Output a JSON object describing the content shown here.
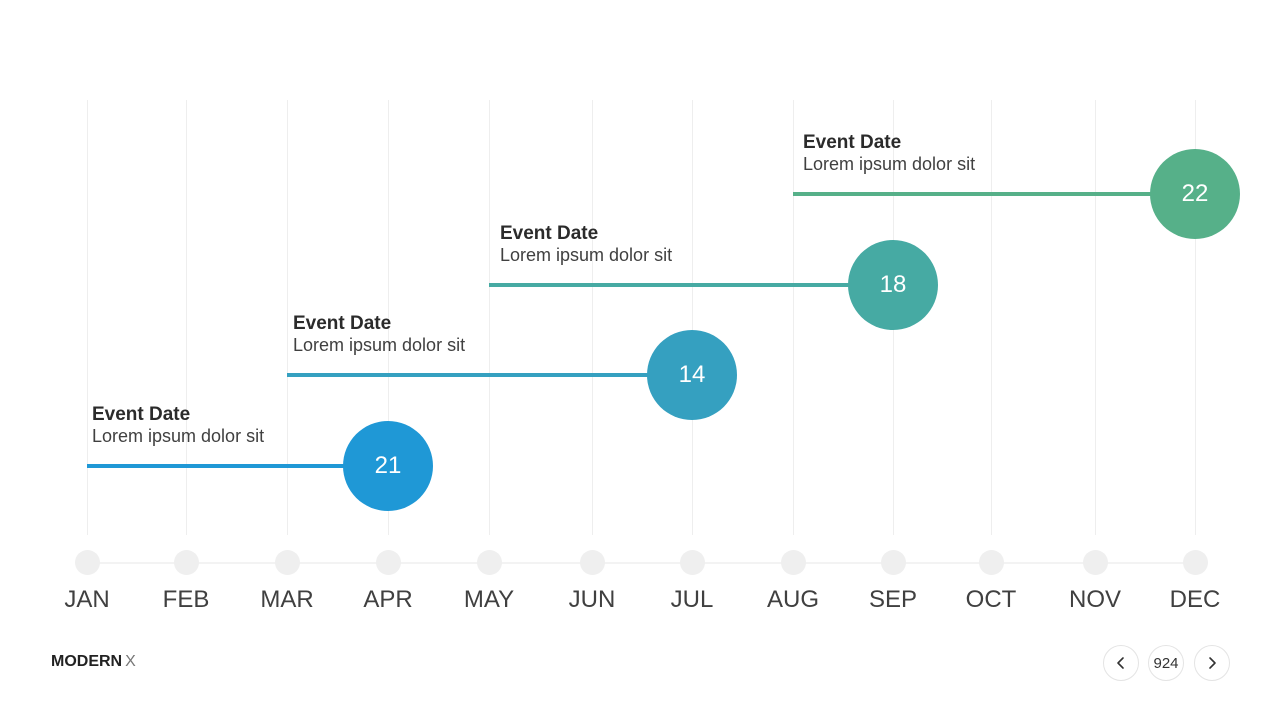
{
  "months": [
    "JAN",
    "FEB",
    "MAR",
    "APR",
    "MAY",
    "JUN",
    "JUL",
    "AUG",
    "SEP",
    "OCT",
    "NOV",
    "DEC"
  ],
  "events": [
    {
      "title": "Event Date",
      "description": "Lorem ipsum dolor sit",
      "value": "21",
      "start_month": "JAN",
      "end_month": "APR",
      "color": "#1f98d6"
    },
    {
      "title": "Event Date",
      "description": "Lorem ipsum dolor sit",
      "value": "14",
      "start_month": "MAR",
      "end_month": "JUL",
      "color": "#35a0c0"
    },
    {
      "title": "Event Date",
      "description": "Lorem ipsum dolor sit",
      "value": "18",
      "start_month": "MAY",
      "end_month": "SEP",
      "color": "#46aaa3"
    },
    {
      "title": "Event Date",
      "description": "Lorem ipsum dolor sit",
      "value": "22",
      "start_month": "AUG",
      "end_month": "DEC",
      "color": "#56b089"
    }
  ],
  "footer": {
    "brand_main": "MODERN",
    "brand_suffix": "X",
    "page_number": "924"
  },
  "icons": {
    "prev": "chevron-left-icon",
    "next": "chevron-right-icon"
  }
}
